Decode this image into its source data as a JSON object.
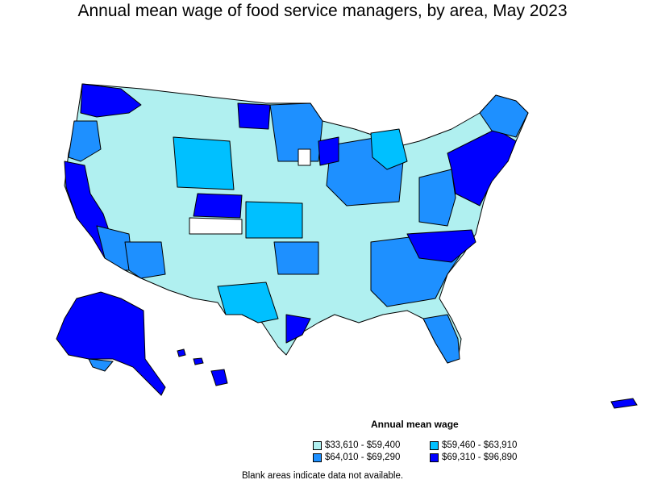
{
  "title": "Annual mean wage of food service managers, by area, May 2023",
  "legend": {
    "title": "Annual mean wage",
    "items": [
      {
        "label": "$33,610 - $59,400",
        "color": "#b0f0f0"
      },
      {
        "label": "$59,460 - $63,910",
        "color": "#00c0ff"
      },
      {
        "label": "$64,010 - $69,290",
        "color": "#1e90ff"
      },
      {
        "label": "$69,310 - $96,890",
        "color": "#0000ff"
      }
    ]
  },
  "note": "Blank areas indicate data not available."
}
